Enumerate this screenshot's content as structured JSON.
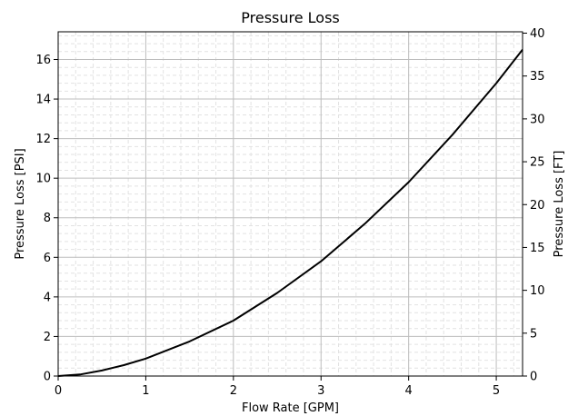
{
  "chart_data": {
    "type": "line",
    "title": "Pressure Loss",
    "xlabel": "Flow Rate [GPM]",
    "ylabel": "Pressure Loss [PSI]",
    "ylabel_right": "Pressure Loss [FT]",
    "xlim": [
      0,
      5.3
    ],
    "ylim": [
      0,
      17.4
    ],
    "ylim_right": [
      0,
      40.16
    ],
    "x_ticks": [
      "0",
      "1",
      "2",
      "3",
      "4",
      "5"
    ],
    "y_ticks": [
      "0",
      "2",
      "4",
      "6",
      "8",
      "10",
      "12",
      "14",
      "16"
    ],
    "y_right_ticks": [
      "0",
      "5",
      "10",
      "15",
      "20",
      "25",
      "30",
      "35",
      "40"
    ],
    "grid": true,
    "minor_grid": true,
    "legend": "none",
    "line_color": "#000000",
    "series": [
      {
        "x": [
          0,
          0.25,
          0.5,
          0.75,
          1.0,
          1.5,
          2.0,
          2.5,
          3.0,
          3.5,
          4.0,
          4.5,
          5.0,
          5.3
        ],
        "values": [
          0,
          0.08,
          0.28,
          0.55,
          0.88,
          1.75,
          2.8,
          4.2,
          5.8,
          7.7,
          9.8,
          12.2,
          14.8,
          16.5
        ]
      }
    ]
  }
}
